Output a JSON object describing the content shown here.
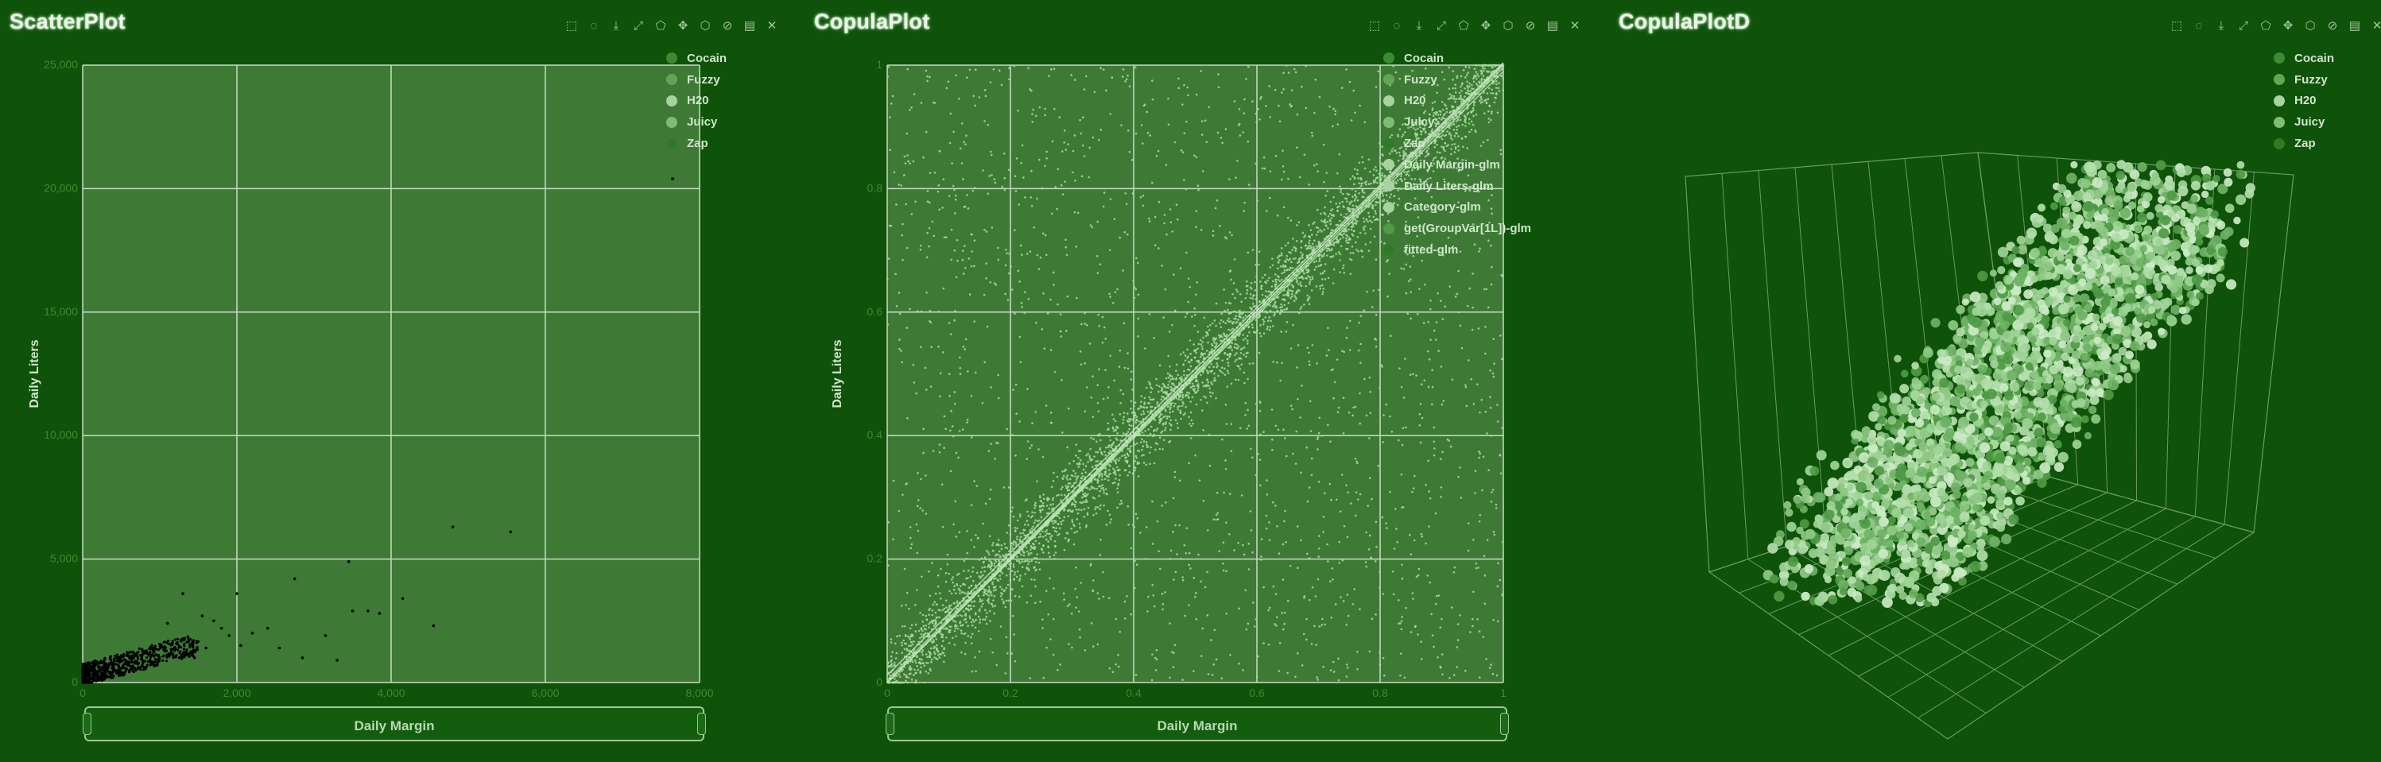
{
  "colors": {
    "background": "#0f520a",
    "plot_bg": "#3e7a36",
    "grid": "#c8dcc4",
    "axis": "#6fae62",
    "tick": "#3c8a32",
    "point_scatter": "#000000",
    "point_copula": "#a9dba2"
  },
  "toolbar_icons": [
    "rect-zoom-icon",
    "lasso-icon",
    "download-icon",
    "reset-zoom-icon",
    "polygon-select-icon",
    "pan-icon",
    "brush-icon",
    "clear-select-icon",
    "data-view-icon",
    "close-icon"
  ],
  "legend_series": [
    {
      "name": "Cocain",
      "color": "#3e8a34"
    },
    {
      "name": "Fuzzy",
      "color": "#62a655"
    },
    {
      "name": "H20",
      "color": "#a6d3a0"
    },
    {
      "name": "Juicy",
      "color": "#7ebc73"
    },
    {
      "name": "Zap",
      "color": "#2f7a27"
    }
  ],
  "copula_extra_legend": [
    {
      "name": "Daily Margin-glm",
      "color": "#a6d3a0"
    },
    {
      "name": "Daily Liters-glm",
      "color": "#a6d3a0"
    },
    {
      "name": "Category-glm",
      "color": "#a6d3a0"
    },
    {
      "name": "get(GroupVar[1L])-glm",
      "color": "#4f9a45"
    },
    {
      "name": "fitted-glm",
      "color": "#2f7a27"
    }
  ],
  "chart_data": [
    {
      "type": "scatter",
      "title": "ScatterPlot",
      "xlabel": "Daily Margin",
      "ylabel": "Daily Liters",
      "xlim": [
        0,
        8000
      ],
      "ylim": [
        0,
        25000
      ],
      "x_ticks": [
        "0",
        "2,000",
        "4,000",
        "6,000",
        "8,000"
      ],
      "y_ticks": [
        "0",
        "5,000",
        "10,000",
        "15,000",
        "20,000",
        "25,000"
      ],
      "grid": true,
      "legend": "top-right",
      "points": [
        [
          7650,
          20400
        ],
        [
          4800,
          6300
        ],
        [
          5550,
          6100
        ],
        [
          3450,
          4900
        ],
        [
          2000,
          3600
        ],
        [
          1300,
          3600
        ],
        [
          2750,
          4200
        ],
        [
          4150,
          3400
        ],
        [
          3500,
          2900
        ],
        [
          3700,
          2900
        ],
        [
          3850,
          2800
        ],
        [
          4550,
          2300
        ],
        [
          3150,
          1900
        ],
        [
          2200,
          2000
        ],
        [
          2400,
          2200
        ],
        [
          1550,
          2700
        ],
        [
          1700,
          2500
        ],
        [
          1800,
          2200
        ],
        [
          1900,
          1900
        ],
        [
          1100,
          2400
        ],
        [
          2050,
          1500
        ],
        [
          2850,
          1000
        ],
        [
          3300,
          900
        ],
        [
          2550,
          1400
        ],
        [
          1600,
          1400
        ],
        [
          1450,
          1000
        ]
      ]
    },
    {
      "type": "scatter",
      "title": "CopulaPlot",
      "xlabel": "Daily Margin",
      "ylabel": "Daily Liters",
      "xlim": [
        0,
        1
      ],
      "ylim": [
        0,
        1
      ],
      "x_ticks": [
        "0",
        "0.2",
        "0.4",
        "0.6",
        "0.8",
        "1"
      ],
      "y_ticks": [
        "0",
        "0.2",
        "0.4",
        "0.6",
        "0.8",
        "1"
      ],
      "grid": true,
      "legend": "top-right"
    },
    {
      "type": "scatter3d",
      "title": "CopulaPlotD",
      "legend": "top-right"
    }
  ]
}
